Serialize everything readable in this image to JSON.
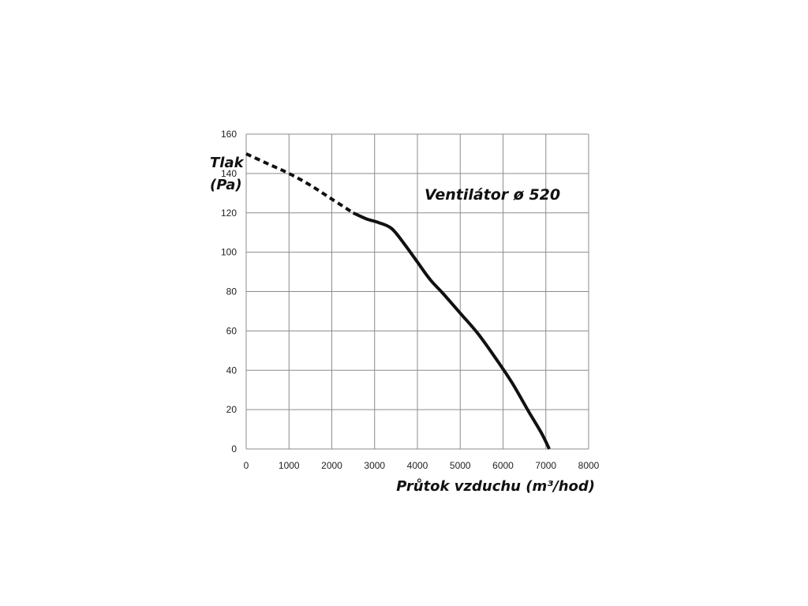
{
  "chart_data": {
    "type": "line",
    "title": "Ventilátor ø 520",
    "xlabel": "Průtok vzduchu (m³/hod)",
    "ylabel_line1": "Tlak",
    "ylabel_line2": "(Pa)",
    "xlim": [
      0,
      8000
    ],
    "ylim": [
      0,
      160
    ],
    "xticks": [
      0,
      1000,
      2000,
      3000,
      4000,
      5000,
      6000,
      7000,
      8000
    ],
    "yticks": [
      0,
      20,
      40,
      60,
      80,
      100,
      120,
      140,
      160
    ],
    "grid": true,
    "series": [
      {
        "style": "dashed",
        "color": "#111111",
        "x": [
          0,
          500,
          1000,
          1500,
          2000,
          2500
        ],
        "y": [
          150,
          145,
          140,
          134,
          127,
          120
        ]
      },
      {
        "style": "solid",
        "color": "#111111",
        "x": [
          2500,
          2800,
          3100,
          3400,
          3700,
          4000,
          4300,
          4600,
          5000,
          5400,
          5800,
          6200,
          6600,
          6900,
          7080
        ],
        "y": [
          120,
          117,
          115,
          112,
          104,
          95,
          86,
          79,
          69,
          59,
          47,
          34,
          19,
          8,
          0
        ]
      }
    ]
  }
}
